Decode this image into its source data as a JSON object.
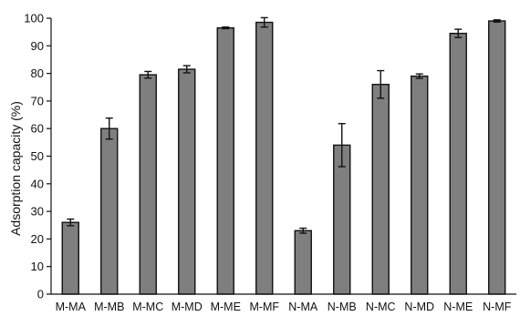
{
  "chart_data": {
    "type": "bar",
    "title": "",
    "xlabel": "",
    "ylabel": "Adsorption capacity (%)",
    "ylim": [
      0,
      100
    ],
    "yticks": [
      0,
      10,
      20,
      30,
      40,
      50,
      60,
      70,
      80,
      90,
      100
    ],
    "categories": [
      "M-MA",
      "M-MB",
      "M-MC",
      "M-MD",
      "M-ME",
      "M-MF",
      "N-MA",
      "N-MB",
      "N-MC",
      "N-MD",
      "N-ME",
      "N-MF"
    ],
    "values": [
      26,
      60,
      79.5,
      81.5,
      96.5,
      98.5,
      23,
      54,
      76,
      79,
      94.5,
      99
    ],
    "errors": [
      1.2,
      3.8,
      1.2,
      1.3,
      0.3,
      1.7,
      0.9,
      7.8,
      5.0,
      0.8,
      1.5,
      0.4
    ],
    "grid": false,
    "bar_color": "#7f7f7f",
    "edge_color": "#111111"
  }
}
